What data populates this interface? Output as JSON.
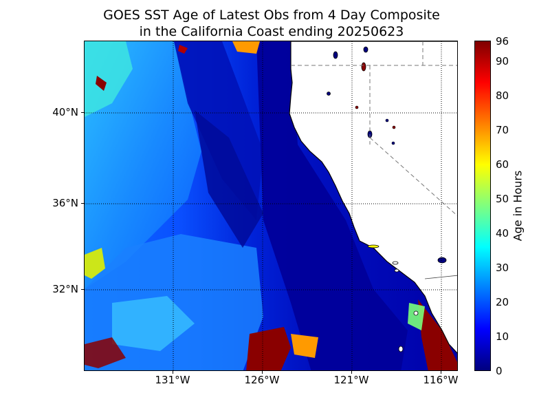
{
  "title": {
    "line1": "GOES SST Age of Latest Obs from 4 Day Composite",
    "line2": "in the California Coast ending 20250623"
  },
  "map": {
    "type": "heatmap",
    "extent": {
      "lon": [
        -136,
        -115
      ],
      "lat": [
        28.5,
        43.5
      ]
    },
    "grid": true,
    "gridlines_lon": [
      -131,
      -126,
      -121,
      -116
    ],
    "gridlines_lat": [
      40,
      36,
      32
    ],
    "x_ticks": [
      "131°W",
      "126°W",
      "121°W",
      "116°W"
    ],
    "y_ticks": [
      "40°N",
      "36°N",
      "32°N"
    ],
    "land_color": "#ffffff",
    "ocean_base_color": "#0000b0",
    "features": [
      "coastline",
      "state-boundaries",
      "islands",
      "lakes",
      "high-age-patches"
    ]
  },
  "colorbar": {
    "label": "Age in Hours",
    "range": [
      0,
      96
    ],
    "colormap": "jet",
    "ticks": [
      "96",
      "90",
      "80",
      "70",
      "60",
      "50",
      "40",
      "30",
      "20",
      "10",
      "0"
    ],
    "colors": [
      "#00007f",
      "#0000ff",
      "#007fff",
      "#00ffff",
      "#7fff7f",
      "#ffff00",
      "#ff7f00",
      "#ff0000",
      "#7f0000"
    ]
  }
}
